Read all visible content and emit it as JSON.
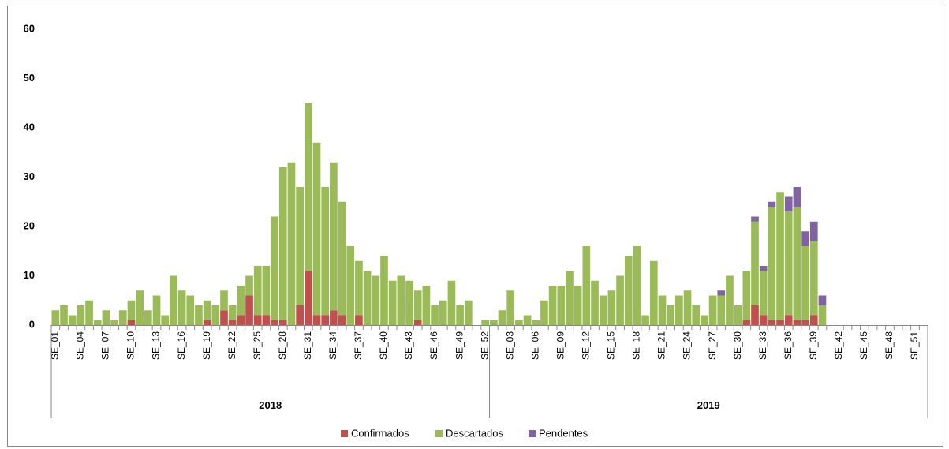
{
  "chart_data": {
    "type": "stacked_bar",
    "categories": [
      "SE_01",
      null,
      null,
      "SE_04",
      null,
      null,
      "SE_07",
      null,
      null,
      "SE_10",
      null,
      null,
      "SE_13",
      null,
      null,
      "SE_16",
      null,
      null,
      "SE_19",
      null,
      null,
      "SE_22",
      null,
      null,
      "SE_25",
      null,
      null,
      "SE_28",
      null,
      null,
      "SE_31",
      null,
      null,
      "SE_34",
      null,
      null,
      "SE_37",
      null,
      null,
      "SE_40",
      null,
      null,
      "SE_43",
      null,
      null,
      "SE_46",
      null,
      null,
      "SE_49",
      null,
      null,
      "SE_52",
      null,
      null,
      "SE_03",
      null,
      null,
      "SE_06",
      null,
      null,
      "SE_09",
      null,
      null,
      "SE_12",
      null,
      null,
      "SE_15",
      null,
      null,
      "SE_18",
      null,
      null,
      "SE_21",
      null,
      null,
      "SE_24",
      null,
      null,
      "SE_27",
      null,
      null,
      "SE_30",
      null,
      null,
      "SE_33",
      null,
      null,
      "SE_36",
      null,
      null,
      "SE_39",
      null,
      null,
      "SE_42",
      null,
      null,
      "SE_45",
      null,
      null,
      "SE_48",
      null,
      null,
      "SE_51",
      null
    ],
    "groups": [
      "2018",
      "2019"
    ],
    "series": [
      {
        "name": "Confirmados",
        "color": "#c0504d",
        "values": [
          0,
          0,
          0,
          0,
          0,
          0,
          0,
          0,
          0,
          1,
          0,
          0,
          0,
          0,
          0,
          0,
          0,
          0,
          1,
          0,
          3,
          1,
          2,
          6,
          2,
          2,
          1,
          1,
          0,
          4,
          11,
          2,
          2,
          3,
          2,
          0,
          2,
          0,
          0,
          0,
          0,
          0,
          0,
          1,
          0,
          0,
          0,
          0,
          0,
          0,
          0,
          0,
          0,
          0,
          0,
          0,
          0,
          0,
          0,
          0,
          0,
          0,
          0,
          0,
          0,
          0,
          0,
          0,
          0,
          0,
          0,
          0,
          0,
          0,
          0,
          0,
          0,
          0,
          0,
          0,
          0,
          0,
          1,
          4,
          2,
          1,
          1,
          2,
          1,
          1,
          2,
          0,
          0,
          0,
          0,
          0,
          0,
          0,
          0,
          0,
          0,
          0,
          0,
          0
        ]
      },
      {
        "name": "Descartados",
        "color": "#9bbb59",
        "values": [
          3,
          4,
          2,
          4,
          5,
          1,
          3,
          1,
          3,
          4,
          7,
          3,
          6,
          2,
          10,
          7,
          6,
          4,
          4,
          4,
          4,
          3,
          6,
          4,
          10,
          10,
          21,
          31,
          33,
          24,
          34,
          35,
          26,
          30,
          23,
          16,
          11,
          11,
          10,
          14,
          9,
          10,
          9,
          6,
          8,
          4,
          5,
          9,
          4,
          5,
          0,
          1,
          1,
          3,
          7,
          1,
          2,
          1,
          5,
          8,
          8,
          11,
          8,
          16,
          9,
          6,
          7,
          10,
          14,
          16,
          2,
          13,
          6,
          4,
          6,
          7,
          4,
          2,
          6,
          6,
          10,
          4,
          10,
          17,
          9,
          23,
          26,
          21,
          23,
          15,
          15,
          4,
          0,
          0,
          0,
          0,
          0,
          0,
          0,
          0,
          0,
          0,
          0,
          0
        ]
      },
      {
        "name": "Pendentes",
        "color": "#8064a2",
        "values": [
          0,
          0,
          0,
          0,
          0,
          0,
          0,
          0,
          0,
          0,
          0,
          0,
          0,
          0,
          0,
          0,
          0,
          0,
          0,
          0,
          0,
          0,
          0,
          0,
          0,
          0,
          0,
          0,
          0,
          0,
          0,
          0,
          0,
          0,
          0,
          0,
          0,
          0,
          0,
          0,
          0,
          0,
          0,
          0,
          0,
          0,
          0,
          0,
          0,
          0,
          0,
          0,
          0,
          0,
          0,
          0,
          0,
          0,
          0,
          0,
          0,
          0,
          0,
          0,
          0,
          0,
          0,
          0,
          0,
          0,
          0,
          0,
          0,
          0,
          0,
          0,
          0,
          0,
          0,
          1,
          0,
          0,
          0,
          1,
          1,
          1,
          0,
          3,
          4,
          3,
          4,
          2,
          0,
          0,
          0,
          0,
          0,
          0,
          0,
          0,
          0,
          0,
          0,
          0
        ]
      }
    ],
    "ylim": [
      0,
      60
    ],
    "yticks": [
      0,
      10,
      20,
      30,
      40,
      50,
      60
    ],
    "legend": "bottom"
  }
}
